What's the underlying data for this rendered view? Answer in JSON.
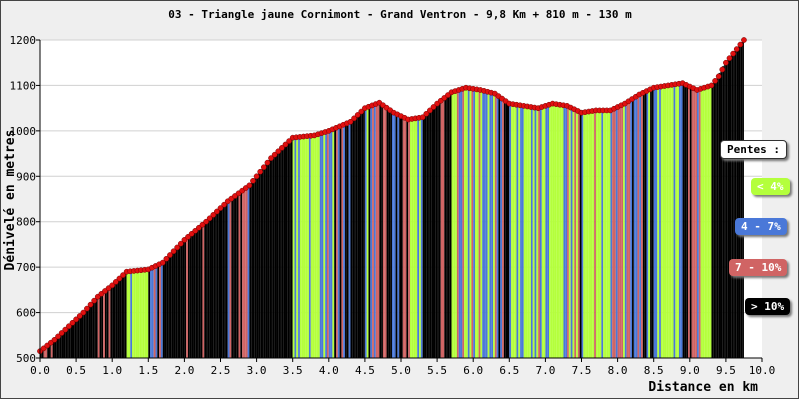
{
  "chart_data": {
    "type": "area",
    "title": "03 - Triangle jaune Cornimont - Grand Ventron - 9,8 Km + 810 m - 130 m",
    "xlabel": "Distance en km",
    "ylabel": "Dénivelé en metres",
    "xlim": [
      0,
      10
    ],
    "ylim": [
      500,
      1200
    ],
    "x_ticks": [
      "0.0",
      "0.5",
      "1.0",
      "1.5",
      "2.0",
      "2.5",
      "3.0",
      "3.5",
      "4.0",
      "4.5",
      "5.0",
      "5.5",
      "6.0",
      "6.5",
      "7.0",
      "7.5",
      "8.0",
      "8.5",
      "9.0",
      "9.5",
      "10.0"
    ],
    "y_ticks": [
      "500",
      "600",
      "700",
      "800",
      "900",
      "1000",
      "1100",
      "1200"
    ],
    "grid": "horizontal",
    "legend_title": "Pentes :",
    "legend": [
      {
        "label": "< 4%",
        "color": "#b4ff3c"
      },
      {
        "label": "4 - 7%",
        "color": "#4a78d8"
      },
      {
        "label": "7 - 10%",
        "color": "#d06464"
      },
      {
        "label": "> 10%",
        "color": "#000000"
      }
    ],
    "series": [
      {
        "x": [
          0.0,
          0.2,
          0.4,
          0.6,
          0.8,
          1.0,
          1.2,
          1.5,
          1.7,
          2.0,
          2.3,
          2.6,
          2.9,
          3.2,
          3.5,
          3.8,
          4.0,
          4.3,
          4.5,
          4.7,
          4.9,
          5.1,
          5.3,
          5.5,
          5.7,
          5.9,
          6.1,
          6.3,
          6.5,
          6.7,
          6.9,
          7.1,
          7.3,
          7.5,
          7.7,
          7.9,
          8.1,
          8.3,
          8.5,
          8.7,
          8.9,
          9.1,
          9.3,
          9.4,
          9.5,
          9.6,
          9.7,
          9.75
        ],
        "y": [
          515,
          540,
          570,
          600,
          635,
          660,
          690,
          695,
          710,
          760,
          800,
          845,
          880,
          940,
          985,
          990,
          1000,
          1020,
          1050,
          1062,
          1040,
          1025,
          1030,
          1060,
          1085,
          1095,
          1090,
          1082,
          1060,
          1055,
          1050,
          1060,
          1055,
          1040,
          1045,
          1045,
          1060,
          1080,
          1095,
          1100,
          1105,
          1090,
          1100,
          1120,
          1150,
          1170,
          1190,
          1200
        ]
      }
    ]
  }
}
